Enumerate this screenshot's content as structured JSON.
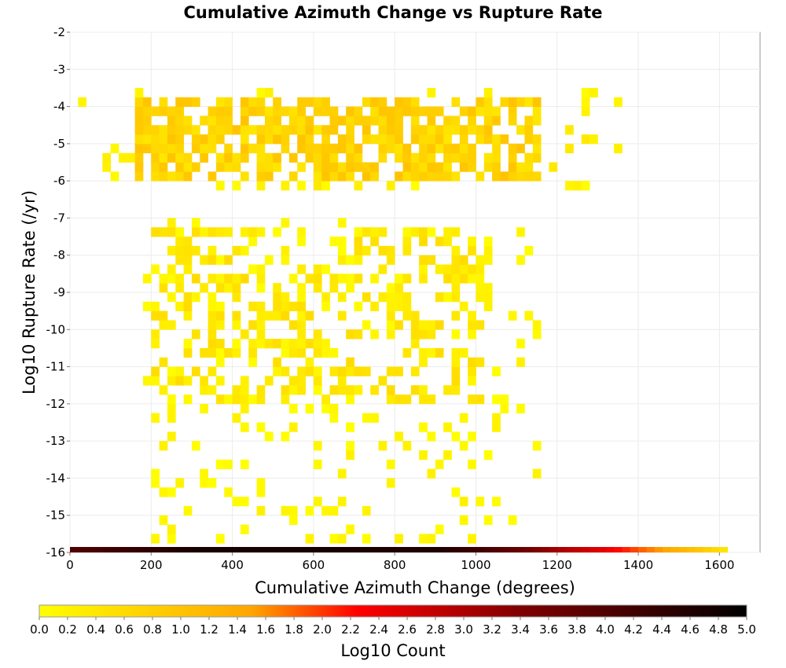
{
  "chart_data": {
    "type": "heatmap",
    "title": "Cumulative Azimuth Change vs Rupture Rate",
    "xlabel": "Cumulative Azimuth Change (degrees)",
    "ylabel": "Log10 Rupture Rate (/yr)",
    "xlim": [
      0,
      1700
    ],
    "ylim": [
      -16,
      -2
    ],
    "x_ticks": [
      "0",
      "200",
      "400",
      "600",
      "800",
      "1000",
      "1200",
      "1400",
      "1600"
    ],
    "y_ticks": [
      "-2",
      "-3",
      "-4",
      "-5",
      "-6",
      "-7",
      "-8",
      "-9",
      "-10",
      "-11",
      "-12",
      "-13",
      "-14",
      "-15",
      "-16"
    ],
    "x_bin_width": 20,
    "y_bin_height": 0.25,
    "grid": true,
    "colorbar": {
      "label": "Log10 Count",
      "range": [
        0.0,
        5.0
      ],
      "ticks": [
        "0.0",
        "0.2",
        "0.4",
        "0.6",
        "0.8",
        "1.0",
        "1.2",
        "1.4",
        "1.6",
        "1.8",
        "2.0",
        "2.2",
        "2.4",
        "2.6",
        "2.8",
        "3.0",
        "3.2",
        "3.4",
        "3.6",
        "3.8",
        "4.0",
        "4.2",
        "4.4",
        "4.6",
        "4.8",
        "5.0"
      ],
      "colors": [
        "#ffff00",
        "#ffa500",
        "#ff0000",
        "#800000",
        "#000000"
      ],
      "placement": "bottom"
    },
    "bottom_row": {
      "y": -16,
      "x_start": 0,
      "x_end": 1620,
      "log10_counts": [
        [
          0,
          4.0
        ],
        [
          300,
          4.7
        ],
        [
          600,
          4.7
        ],
        [
          900,
          4.6
        ],
        [
          1000,
          4.2
        ],
        [
          1100,
          3.7
        ],
        [
          1200,
          3.0
        ],
        [
          1300,
          2.5
        ],
        [
          1400,
          1.8
        ],
        [
          1500,
          1.2
        ],
        [
          1560,
          0.8
        ],
        [
          1620,
          0.3
        ]
      ]
    },
    "upper_cluster": {
      "x_range": [
        0,
        1360
      ],
      "y_range": [
        -6.25,
        -3.5
      ],
      "dense_x_range": [
        160,
        1140
      ],
      "dense_y_range": [
        -6.0,
        -4.0
      ],
      "peak_log10_count": 1.0,
      "typical_log10_count": 0.4
    },
    "middle_cluster": {
      "x_range": [
        180,
        1160
      ],
      "y_range": [
        -15.75,
        -7.0
      ],
      "dense_x_range": [
        200,
        1000
      ],
      "dense_y_range": [
        -12.0,
        -7.5
      ],
      "peak_log10_count": 0.6,
      "typical_log10_count": 0.2
    }
  }
}
